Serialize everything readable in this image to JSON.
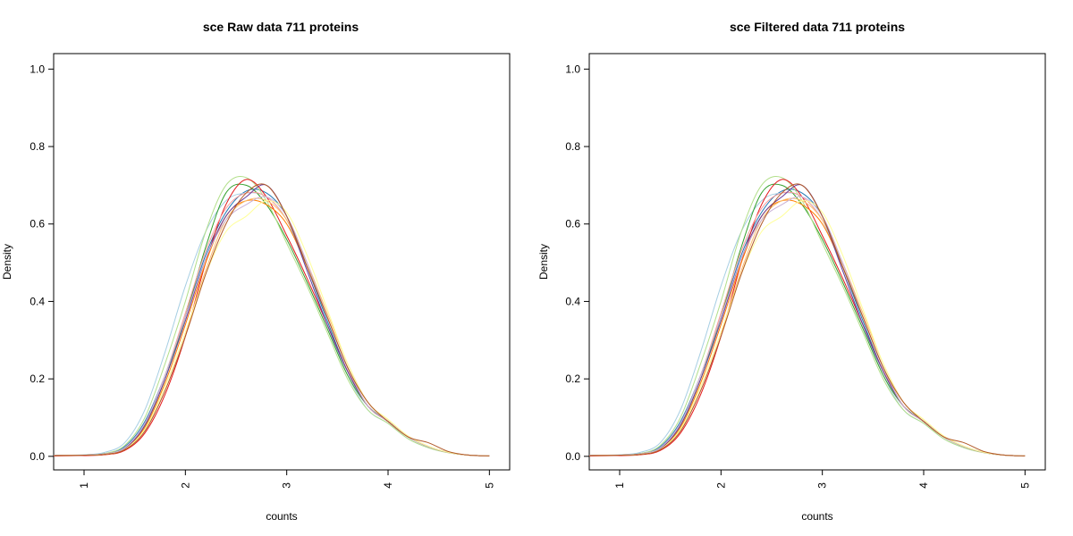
{
  "chart_data": [
    {
      "type": "line",
      "title": "sce  Raw data  711  proteins",
      "xlabel": "counts",
      "ylabel": "Density",
      "xlim": [
        0.7,
        5.2
      ],
      "ylim": [
        -0.035,
        1.04
      ],
      "xticks": [
        1,
        2,
        3,
        4,
        5
      ],
      "yticks": [
        0.0,
        0.2,
        0.4,
        0.6,
        0.8,
        1.0
      ],
      "xtick_labels": [
        "1",
        "2",
        "3",
        "4",
        "5"
      ],
      "ytick_labels": [
        "0.0",
        "0.2",
        "0.4",
        "0.6",
        "0.8",
        "1.0"
      ],
      "x": [
        0.7,
        1.0,
        1.2,
        1.4,
        1.6,
        1.8,
        2.0,
        2.2,
        2.4,
        2.6,
        2.8,
        3.0,
        3.2,
        3.4,
        3.6,
        3.8,
        4.0,
        4.2,
        4.4,
        4.6,
        4.8,
        5.0
      ],
      "series": [
        {
          "color": "#1F78B4",
          "values": [
            0.002,
            0.003,
            0.007,
            0.025,
            0.09,
            0.21,
            0.36,
            0.52,
            0.63,
            0.685,
            0.68,
            0.62,
            0.49,
            0.35,
            0.22,
            0.13,
            0.09,
            0.05,
            0.025,
            0.01,
            0.003,
            0.001
          ]
        },
        {
          "color": "#A6CEE3",
          "values": [
            0.003,
            0.004,
            0.01,
            0.035,
            0.12,
            0.27,
            0.44,
            0.58,
            0.66,
            0.68,
            0.67,
            0.61,
            0.48,
            0.34,
            0.21,
            0.12,
            0.085,
            0.045,
            0.022,
            0.009,
            0.003,
            0.001
          ]
        },
        {
          "color": "#33A02C",
          "values": [
            0.002,
            0.003,
            0.006,
            0.02,
            0.08,
            0.2,
            0.36,
            0.54,
            0.68,
            0.7,
            0.65,
            0.56,
            0.45,
            0.33,
            0.21,
            0.13,
            0.09,
            0.05,
            0.025,
            0.01,
            0.003,
            0.001
          ]
        },
        {
          "color": "#B2DF8A",
          "values": [
            0.002,
            0.003,
            0.007,
            0.028,
            0.1,
            0.24,
            0.4,
            0.58,
            0.7,
            0.72,
            0.66,
            0.55,
            0.44,
            0.32,
            0.2,
            0.12,
            0.085,
            0.045,
            0.022,
            0.009,
            0.003,
            0.001
          ]
        },
        {
          "color": "#E31A1C",
          "values": [
            0.001,
            0.002,
            0.004,
            0.015,
            0.06,
            0.16,
            0.31,
            0.5,
            0.65,
            0.715,
            0.67,
            0.57,
            0.46,
            0.34,
            0.22,
            0.13,
            0.09,
            0.05,
            0.025,
            0.01,
            0.003,
            0.001
          ]
        },
        {
          "color": "#FB9A99",
          "values": [
            0.002,
            0.003,
            0.006,
            0.022,
            0.085,
            0.21,
            0.37,
            0.53,
            0.64,
            0.68,
            0.67,
            0.61,
            0.5,
            0.36,
            0.23,
            0.13,
            0.09,
            0.05,
            0.025,
            0.01,
            0.003,
            0.001
          ]
        },
        {
          "color": "#FF7F00",
          "values": [
            0.002,
            0.003,
            0.006,
            0.02,
            0.075,
            0.19,
            0.34,
            0.5,
            0.62,
            0.66,
            0.65,
            0.6,
            0.49,
            0.36,
            0.23,
            0.13,
            0.09,
            0.05,
            0.025,
            0.01,
            0.003,
            0.001
          ]
        },
        {
          "color": "#FDBF6F",
          "values": [
            0.002,
            0.003,
            0.005,
            0.018,
            0.07,
            0.18,
            0.32,
            0.48,
            0.61,
            0.66,
            0.66,
            0.61,
            0.5,
            0.37,
            0.24,
            0.14,
            0.095,
            0.052,
            0.026,
            0.01,
            0.003,
            0.001
          ]
        },
        {
          "color": "#6A3D9A",
          "values": [
            0.002,
            0.003,
            0.006,
            0.02,
            0.08,
            0.2,
            0.35,
            0.51,
            0.62,
            0.67,
            0.7,
            0.62,
            0.48,
            0.34,
            0.22,
            0.13,
            0.09,
            0.05,
            0.025,
            0.01,
            0.003,
            0.001
          ]
        },
        {
          "color": "#CAB2D6",
          "values": [
            0.002,
            0.003,
            0.006,
            0.022,
            0.085,
            0.21,
            0.36,
            0.51,
            0.61,
            0.65,
            0.67,
            0.62,
            0.5,
            0.36,
            0.23,
            0.13,
            0.09,
            0.05,
            0.025,
            0.01,
            0.003,
            0.001
          ]
        },
        {
          "color": "#FFFF99",
          "values": [
            0.002,
            0.003,
            0.005,
            0.018,
            0.07,
            0.18,
            0.32,
            0.47,
            0.58,
            0.62,
            0.66,
            0.63,
            0.52,
            0.38,
            0.24,
            0.14,
            0.095,
            0.052,
            0.026,
            0.01,
            0.003,
            0.001
          ]
        },
        {
          "color": "#B15928",
          "values": [
            0.002,
            0.003,
            0.005,
            0.017,
            0.065,
            0.17,
            0.31,
            0.47,
            0.6,
            0.68,
            0.7,
            0.62,
            0.49,
            0.36,
            0.23,
            0.14,
            0.09,
            0.05,
            0.035,
            0.012,
            0.003,
            0.001
          ]
        }
      ]
    },
    {
      "type": "line",
      "title": "sce  Filtered data 711  proteins",
      "xlabel": "counts",
      "ylabel": "Density",
      "xlim": [
        0.7,
        5.2
      ],
      "ylim": [
        -0.035,
        1.04
      ],
      "xticks": [
        1,
        2,
        3,
        4,
        5
      ],
      "yticks": [
        0.0,
        0.2,
        0.4,
        0.6,
        0.8,
        1.0
      ],
      "xtick_labels": [
        "1",
        "2",
        "3",
        "4",
        "5"
      ],
      "ytick_labels": [
        "0.0",
        "0.2",
        "0.4",
        "0.6",
        "0.8",
        "1.0"
      ],
      "x": [
        0.7,
        1.0,
        1.2,
        1.4,
        1.6,
        1.8,
        2.0,
        2.2,
        2.4,
        2.6,
        2.8,
        3.0,
        3.2,
        3.4,
        3.6,
        3.8,
        4.0,
        4.2,
        4.4,
        4.6,
        4.8,
        5.0
      ],
      "series": [
        {
          "color": "#1F78B4",
          "values": [
            0.002,
            0.003,
            0.007,
            0.025,
            0.09,
            0.21,
            0.36,
            0.52,
            0.63,
            0.685,
            0.68,
            0.62,
            0.49,
            0.35,
            0.22,
            0.13,
            0.09,
            0.05,
            0.025,
            0.01,
            0.003,
            0.001
          ]
        },
        {
          "color": "#A6CEE3",
          "values": [
            0.003,
            0.004,
            0.01,
            0.035,
            0.12,
            0.27,
            0.44,
            0.58,
            0.66,
            0.68,
            0.67,
            0.61,
            0.48,
            0.34,
            0.21,
            0.12,
            0.085,
            0.045,
            0.022,
            0.009,
            0.003,
            0.001
          ]
        },
        {
          "color": "#33A02C",
          "values": [
            0.002,
            0.003,
            0.006,
            0.02,
            0.08,
            0.2,
            0.36,
            0.54,
            0.68,
            0.7,
            0.65,
            0.56,
            0.45,
            0.33,
            0.21,
            0.13,
            0.09,
            0.05,
            0.025,
            0.01,
            0.003,
            0.001
          ]
        },
        {
          "color": "#B2DF8A",
          "values": [
            0.002,
            0.003,
            0.007,
            0.028,
            0.1,
            0.24,
            0.4,
            0.58,
            0.7,
            0.72,
            0.66,
            0.55,
            0.44,
            0.32,
            0.2,
            0.12,
            0.085,
            0.045,
            0.022,
            0.009,
            0.003,
            0.001
          ]
        },
        {
          "color": "#E31A1C",
          "values": [
            0.001,
            0.002,
            0.004,
            0.015,
            0.06,
            0.16,
            0.31,
            0.5,
            0.65,
            0.715,
            0.67,
            0.57,
            0.46,
            0.34,
            0.22,
            0.13,
            0.09,
            0.05,
            0.025,
            0.01,
            0.003,
            0.001
          ]
        },
        {
          "color": "#FB9A99",
          "values": [
            0.002,
            0.003,
            0.006,
            0.022,
            0.085,
            0.21,
            0.37,
            0.53,
            0.64,
            0.68,
            0.67,
            0.61,
            0.5,
            0.36,
            0.23,
            0.13,
            0.09,
            0.05,
            0.025,
            0.01,
            0.003,
            0.001
          ]
        },
        {
          "color": "#FF7F00",
          "values": [
            0.002,
            0.003,
            0.006,
            0.02,
            0.075,
            0.19,
            0.34,
            0.5,
            0.62,
            0.66,
            0.65,
            0.6,
            0.49,
            0.36,
            0.23,
            0.13,
            0.09,
            0.05,
            0.025,
            0.01,
            0.003,
            0.001
          ]
        },
        {
          "color": "#FDBF6F",
          "values": [
            0.002,
            0.003,
            0.005,
            0.018,
            0.07,
            0.18,
            0.32,
            0.48,
            0.61,
            0.66,
            0.66,
            0.61,
            0.5,
            0.37,
            0.24,
            0.14,
            0.095,
            0.052,
            0.026,
            0.01,
            0.003,
            0.001
          ]
        },
        {
          "color": "#6A3D9A",
          "values": [
            0.002,
            0.003,
            0.006,
            0.02,
            0.08,
            0.2,
            0.35,
            0.51,
            0.62,
            0.67,
            0.7,
            0.62,
            0.48,
            0.34,
            0.22,
            0.13,
            0.09,
            0.05,
            0.025,
            0.01,
            0.003,
            0.001
          ]
        },
        {
          "color": "#CAB2D6",
          "values": [
            0.002,
            0.003,
            0.006,
            0.022,
            0.085,
            0.21,
            0.36,
            0.51,
            0.61,
            0.65,
            0.67,
            0.62,
            0.5,
            0.36,
            0.23,
            0.13,
            0.09,
            0.05,
            0.025,
            0.01,
            0.003,
            0.001
          ]
        },
        {
          "color": "#FFFF99",
          "values": [
            0.002,
            0.003,
            0.005,
            0.018,
            0.07,
            0.18,
            0.32,
            0.47,
            0.58,
            0.62,
            0.66,
            0.63,
            0.52,
            0.38,
            0.24,
            0.14,
            0.095,
            0.052,
            0.026,
            0.01,
            0.003,
            0.001
          ]
        },
        {
          "color": "#B15928",
          "values": [
            0.002,
            0.003,
            0.005,
            0.017,
            0.065,
            0.17,
            0.31,
            0.47,
            0.6,
            0.68,
            0.7,
            0.62,
            0.49,
            0.36,
            0.23,
            0.14,
            0.09,
            0.05,
            0.035,
            0.012,
            0.003,
            0.001
          ]
        }
      ]
    }
  ]
}
